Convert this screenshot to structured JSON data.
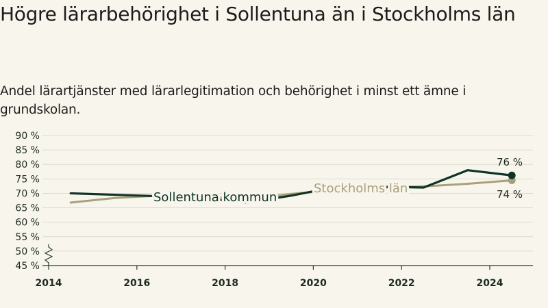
{
  "title": "Högre lärarbehörighet i Sollentuna än i Stockholms län",
  "subtitle": "Andel lärartjänster med lärarlegitimation och behörighet i minst ett ämne i grundskolan.",
  "chart_data": {
    "type": "line",
    "x": [
      2014.5,
      2015.5,
      2016.5,
      2017.5,
      2018.5,
      2019.5,
      2020.5,
      2021.5,
      2022.5,
      2023.5,
      2024.5
    ],
    "xticks": [
      "2014",
      "2016",
      "2018",
      "2020",
      "2022",
      "2024"
    ],
    "yticks": [
      "90 %",
      "85 %",
      "80 %",
      "75 %",
      "70 %",
      "65 %",
      "60 %",
      "55 %",
      "50 %",
      "45 %"
    ],
    "ylim": [
      45,
      90
    ],
    "xlim": [
      2014,
      2025
    ],
    "grid": true,
    "axis_break": true,
    "series": [
      {
        "name": "Sollentuna kommun",
        "color": "#0f3327",
        "values": [
          70.0,
          69.5,
          69.0,
          68.3,
          66.8,
          69.2,
          72.2,
          72.3,
          72.0,
          78.0,
          76.2
        ],
        "end_label": "76 %"
      },
      {
        "name": "Stockholms län",
        "color": "#a8a07a",
        "values": [
          66.8,
          68.4,
          69.2,
          68.9,
          67.9,
          69.8,
          71.2,
          71.9,
          72.4,
          73.3,
          74.5
        ],
        "end_label": "74 %"
      }
    ]
  }
}
